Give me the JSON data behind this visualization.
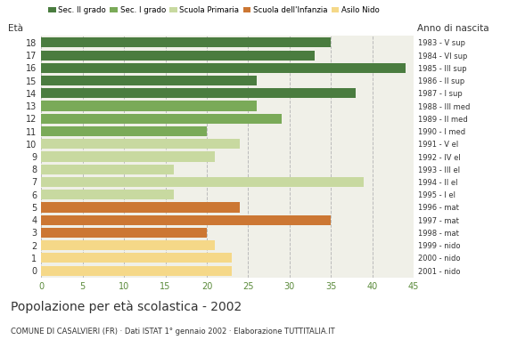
{
  "ages": [
    18,
    17,
    16,
    15,
    14,
    13,
    12,
    11,
    10,
    9,
    8,
    7,
    6,
    5,
    4,
    3,
    2,
    1,
    0
  ],
  "values": [
    35,
    33,
    44,
    26,
    38,
    26,
    29,
    20,
    24,
    21,
    16,
    39,
    16,
    24,
    35,
    20,
    21,
    23,
    23
  ],
  "colors": [
    "#4a7c3f",
    "#4a7c3f",
    "#4a7c3f",
    "#4a7c3f",
    "#4a7c3f",
    "#7aaa58",
    "#7aaa58",
    "#7aaa58",
    "#c8d9a0",
    "#c8d9a0",
    "#c8d9a0",
    "#c8d9a0",
    "#c8d9a0",
    "#cc7733",
    "#cc7733",
    "#cc7733",
    "#f5d888",
    "#f5d888",
    "#f5d888"
  ],
  "right_labels": [
    "1983 - V sup",
    "1984 - VI sup",
    "1985 - III sup",
    "1986 - II sup",
    "1987 - I sup",
    "1988 - III med",
    "1989 - II med",
    "1990 - I med",
    "1991 - V el",
    "1992 - IV el",
    "1993 - III el",
    "1994 - II el",
    "1995 - I el",
    "1996 - mat",
    "1997 - mat",
    "1998 - mat",
    "1999 - nido",
    "2000 - nido",
    "2001 - nido"
  ],
  "legend_labels": [
    "Sec. II grado",
    "Sec. I grado",
    "Scuola Primaria",
    "Scuola dell'Infanzia",
    "Asilo Nido"
  ],
  "legend_colors": [
    "#4a7c3f",
    "#7aaa58",
    "#c8d9a0",
    "#cc7733",
    "#f5d888"
  ],
  "title": "Popolazione per età scolastica - 2002",
  "subtitle": "COMUNE DI CASALVIERI (FR) · Dati ISTAT 1° gennaio 2002 · Elaborazione TUTTITALIA.IT",
  "xlabel_left": "Età",
  "xlabel_right": "Anno di nascita",
  "xlim": [
    0,
    45
  ],
  "xticks": [
    0,
    5,
    10,
    15,
    20,
    25,
    30,
    35,
    40,
    45
  ],
  "grid_color": "#bbbbbb",
  "bar_height": 0.78,
  "background_color": "#ffffff",
  "plot_bg_color": "#f0f0e8",
  "axis_color": "#5a8a3a",
  "title_color": "#333333",
  "subtitle_color": "#333333"
}
